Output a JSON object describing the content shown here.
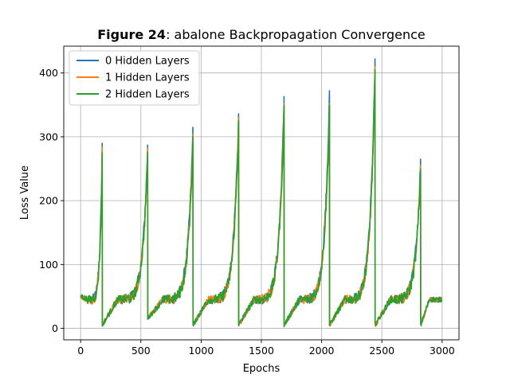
{
  "chart_data": {
    "type": "line",
    "title_bold": "Figure 24",
    "title_rest": ": abalone Backpropagation Convergence",
    "xlabel": "Epochs",
    "ylabel": "Loss Value",
    "xlim": [
      -140,
      3140
    ],
    "ylim": [
      -18,
      442
    ],
    "xticks": [
      0,
      500,
      1000,
      1500,
      2000,
      2500,
      3000
    ],
    "yticks": [
      0,
      100,
      200,
      300,
      400
    ],
    "grid": true,
    "legend_position": "top-left",
    "cycle": {
      "starts": [
        0,
        180,
        557,
        933,
        1312,
        1689,
        2066,
        2444,
        2822
      ],
      "start_values": [
        50,
        5,
        15,
        5,
        5,
        5,
        5,
        5,
        5
      ],
      "comment_free": true
    },
    "series": [
      {
        "name": "0 Hidden Layers",
        "color": "#1f77b4",
        "peaks": [
          290,
          287,
          315,
          336,
          363,
          370,
          422,
          265
        ],
        "tail_value": 45
      },
      {
        "name": "1 Hidden Layers",
        "color": "#ff7f0e",
        "peaks": [
          283,
          282,
          305,
          330,
          352,
          352,
          410,
          255
        ],
        "tail_value": 45
      },
      {
        "name": "2 Hidden Layers",
        "color": "#2ca02c",
        "peaks": [
          275,
          276,
          300,
          325,
          350,
          350,
          405,
          250
        ],
        "tail_value": 45
      }
    ]
  }
}
